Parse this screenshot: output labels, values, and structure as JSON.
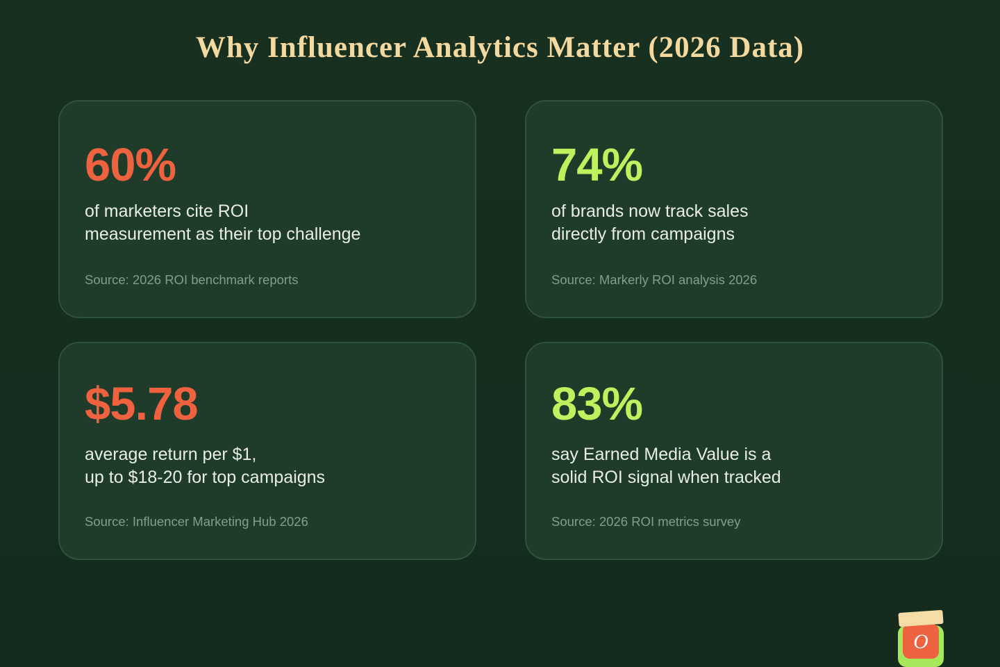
{
  "header": {
    "title": "Why Influencer Analytics Matter (2026 Data)"
  },
  "cards": [
    {
      "stat": "60%",
      "color": "#ee6240",
      "lines": [
        "of marketers cite ROI",
        "measurement as their top challenge"
      ],
      "source": "Source: 2026 ROI benchmark reports"
    },
    {
      "stat": "74%",
      "color": "#bdf25e",
      "lines": [
        "of brands now track sales",
        "directly from campaigns"
      ],
      "source": "Source: Markerly ROI analysis 2026"
    },
    {
      "stat": "$5.78",
      "color": "#ee6240",
      "lines": [
        "average return per $1,",
        "up to $18-20 for top campaigns"
      ],
      "source": "Source: Influencer Marketing Hub 2026"
    },
    {
      "stat": "83%",
      "color": "#bdf25e",
      "lines": [
        "say Earned Media Value is a",
        "solid ROI signal when tracked"
      ],
      "source": "Source: 2026 ROI metrics survey"
    }
  ],
  "logo": {
    "letter": "O"
  }
}
